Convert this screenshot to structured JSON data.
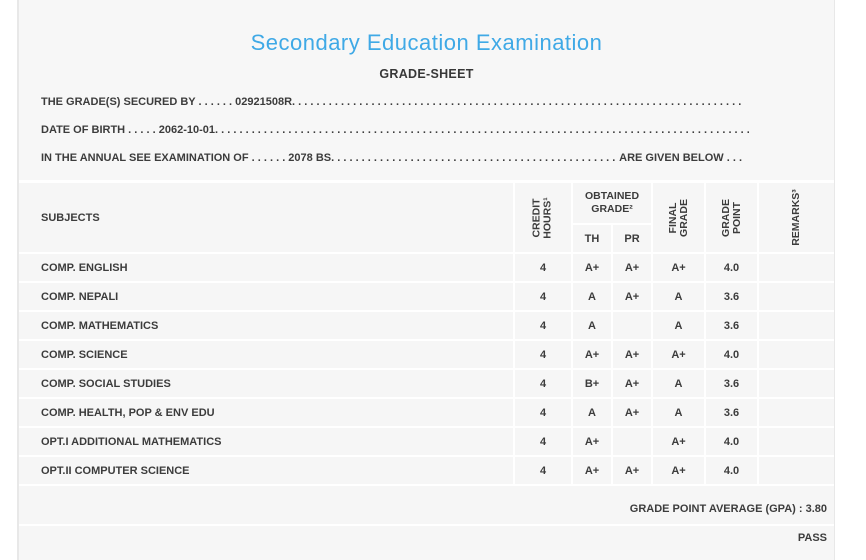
{
  "header": {
    "title": "Secondary Education Examination",
    "subtitle": "GRADE-SHEET"
  },
  "student_info": {
    "lines": [
      {
        "text": "THE GRADE(S) SECURED BY . . . . . . 02921508R",
        "leader": ". . . . . . . . . . . . . . . . . . . . . . . . . . . . . . . . . . . . . . . . . . . . . . . . . . . . . . . . . . . . . . . . . . . . . . . . . . . . . . . . . . . . . . . . . . . .",
        "suffix": ""
      },
      {
        "text": "DATE OF BIRTH . . . . . 2062-10-01",
        "leader": ". . . . . . . . . . . . . . . . . . . . . . . . . . . . . . . . . . . . . . . . . . . . . . . . . . . . . . . . . . . . . . . . . . . . . . . . . . . . . . . . . . . . . . . . . . . .",
        "suffix": ""
      },
      {
        "text": "IN THE ANNUAL SEE EXAMINATION OF . . . . . . 2078 BS",
        "leader": ". . . . . . . . . . . . . . . . . . . . . . . . . . . . . . . . . . . . . . . . . . . . . . . . . . . . . . . . . . . . . . . . . . . . . . . . . . . . . . . . . . . . . . . . . . . .",
        "suffix": "ARE GIVEN BELOW . . ."
      }
    ]
  },
  "table": {
    "header": {
      "subjects": "SUBJECTS",
      "credit_line1": "CREDIT",
      "credit_line2": "HOURS¹",
      "obtained_line1": "OBTAINED",
      "obtained_line2": "GRADE²",
      "th": "TH",
      "pr": "PR",
      "final_line1": "FINAL",
      "final_line2": "GRADE",
      "gp_line1": "GRADE",
      "gp_line2": "POINT",
      "remarks": "REMARKS³"
    },
    "rows": [
      {
        "subject": "COMP. ENGLISH",
        "credit": "4",
        "th": "A+",
        "pr": "A+",
        "final": "A+",
        "gp": "4.0",
        "remarks": ""
      },
      {
        "subject": "COMP. NEPALI",
        "credit": "4",
        "th": "A",
        "pr": "A+",
        "final": "A",
        "gp": "3.6",
        "remarks": ""
      },
      {
        "subject": "COMP. MATHEMATICS",
        "credit": "4",
        "th": "A",
        "pr": "",
        "final": "A",
        "gp": "3.6",
        "remarks": ""
      },
      {
        "subject": "COMP. SCIENCE",
        "credit": "4",
        "th": "A+",
        "pr": "A+",
        "final": "A+",
        "gp": "4.0",
        "remarks": ""
      },
      {
        "subject": "COMP. SOCIAL STUDIES",
        "credit": "4",
        "th": "B+",
        "pr": "A+",
        "final": "A",
        "gp": "3.6",
        "remarks": ""
      },
      {
        "subject": "COMP. HEALTH, POP & ENV EDU",
        "credit": "4",
        "th": "A",
        "pr": "A+",
        "final": "A",
        "gp": "3.6",
        "remarks": ""
      },
      {
        "subject": "OPT.I ADDITIONAL MATHEMATICS",
        "credit": "4",
        "th": "A+",
        "pr": "",
        "final": "A+",
        "gp": "4.0",
        "remarks": ""
      },
      {
        "subject": "OPT.II COMPUTER SCIENCE",
        "credit": "4",
        "th": "A+",
        "pr": "A+",
        "final": "A+",
        "gp": "4.0",
        "remarks": ""
      }
    ],
    "footer": {
      "gpa": "GRADE POINT AVERAGE (GPA) : 3.80",
      "result": "PASS"
    }
  },
  "colors": {
    "accent_blue": "#3FA9E6",
    "text": "#3C3C3C",
    "page_bg": "#F7F7F7",
    "separator": "#FFFFFF"
  }
}
